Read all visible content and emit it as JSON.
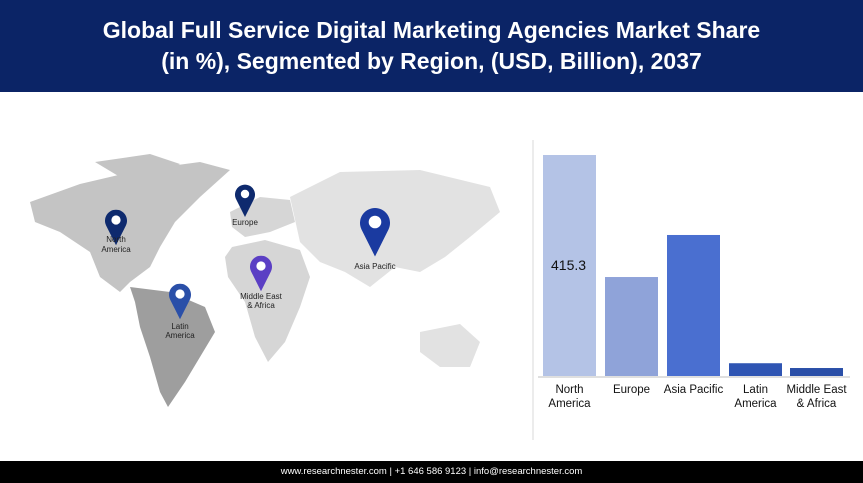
{
  "header": {
    "title": "Global Full Service Digital Marketing Agencies Market Share (in %), Segmented by Region, (USD, Billion), 2037"
  },
  "map_labels": [
    "North America",
    "Europe",
    "Asia Pacific",
    "Middle East & Africa",
    "Latin America"
  ],
  "chart_data": {
    "type": "bar",
    "categories": [
      "North America",
      "Europe",
      "Asia Pacific",
      "Latin America",
      "Middle East & Africa"
    ],
    "values": [
      415.3,
      186,
      265,
      24,
      15
    ],
    "value_labels": [
      "415.3",
      null,
      null,
      null,
      null
    ],
    "colors": [
      "#b4c3e6",
      "#8fa3d9",
      "#4a6fd0",
      "#2f55b3",
      "#2a4fa8"
    ]
  },
  "footer": {
    "text": "www.researchnester.com | +1 646 586 9123 | info@researchnester.com"
  }
}
